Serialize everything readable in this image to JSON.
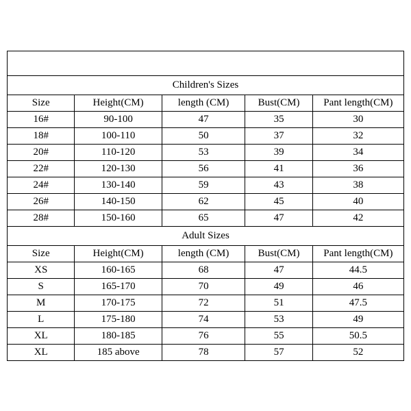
{
  "table": {
    "type": "table",
    "background_color": "#ffffff",
    "border_color": "#000000",
    "text_color": "#000000",
    "font_family": "SimSun",
    "cell_fontsize": 15,
    "column_widths_pct": [
      17,
      22,
      21,
      17,
      23
    ],
    "sections": [
      {
        "title": "Children's Sizes",
        "columns": [
          "Size",
          "Height(CM)",
          "length (CM)",
          "Bust(CM)",
          "Pant length(CM)"
        ],
        "rows": [
          [
            "16#",
            "90-100",
            "47",
            "35",
            "30"
          ],
          [
            "18#",
            "100-110",
            "50",
            "37",
            "32"
          ],
          [
            "20#",
            "110-120",
            "53",
            "39",
            "34"
          ],
          [
            "22#",
            "120-130",
            "56",
            "41",
            "36"
          ],
          [
            "24#",
            "130-140",
            "59",
            "43",
            "38"
          ],
          [
            "26#",
            "140-150",
            "62",
            "45",
            "40"
          ],
          [
            "28#",
            "150-160",
            "65",
            "47",
            "42"
          ]
        ]
      },
      {
        "title": "Adult Sizes",
        "columns": [
          "Size",
          "Height(CM)",
          "length (CM)",
          "Bust(CM)",
          "Pant length(CM)"
        ],
        "rows": [
          [
            "XS",
            "160-165",
            "68",
            "47",
            "44.5"
          ],
          [
            "S",
            "165-170",
            "70",
            "49",
            "46"
          ],
          [
            "M",
            "170-175",
            "72",
            "51",
            "47.5"
          ],
          [
            "L",
            "175-180",
            "74",
            "53",
            "49"
          ],
          [
            "XL",
            "180-185",
            "76",
            "55",
            "50.5"
          ],
          [
            "XL",
            "185 above",
            "78",
            "57",
            "52"
          ]
        ]
      }
    ]
  }
}
